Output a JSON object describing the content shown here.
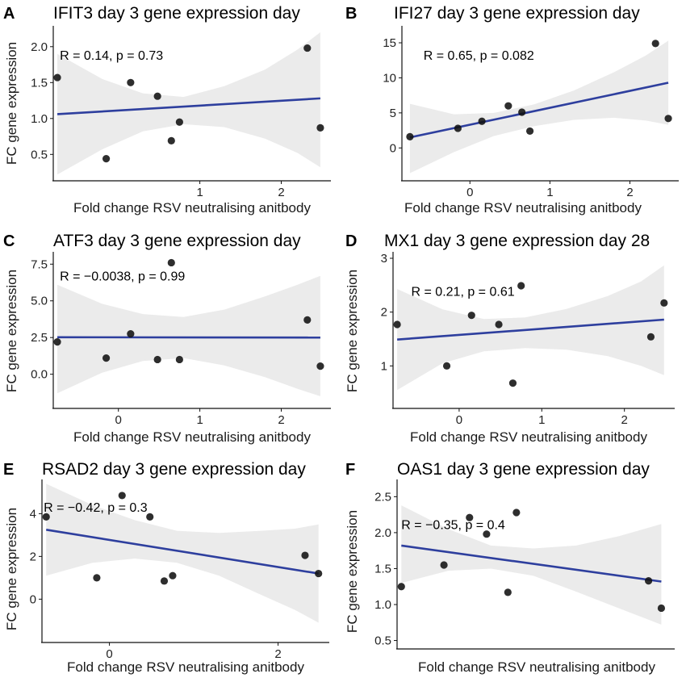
{
  "chart_data": [
    {
      "panel": "A",
      "type": "scatter",
      "title": "IFIT3 day 3 gene expression day",
      "xlabel": "Fold change RSV neutralising anitbody",
      "ylabel": "FC gene expression",
      "xlim": [
        -0.8,
        2.55
      ],
      "ylim": [
        0.2,
        2.2
      ],
      "xticks": [
        1,
        2
      ],
      "xtick_labels": [
        "1",
        "2"
      ],
      "yticks": [
        0.5,
        1.0,
        1.5,
        2.0
      ],
      "ytick_labels": [
        "0.5",
        "1.0",
        "1.5",
        "2.0"
      ],
      "x": [
        -0.75,
        -0.15,
        0.15,
        0.48,
        0.65,
        0.75,
        2.32,
        2.48
      ],
      "y": [
        1.57,
        0.44,
        1.5,
        1.31,
        0.69,
        0.95,
        1.98,
        0.87
      ],
      "fit": {
        "x": [
          -0.75,
          2.48
        ],
        "y": [
          1.06,
          1.28
        ]
      },
      "band": {
        "x": [
          -0.75,
          -0.2,
          0.3,
          0.8,
          1.3,
          1.8,
          2.2,
          2.48
        ],
        "lower": [
          0.22,
          0.57,
          0.82,
          0.92,
          0.88,
          0.72,
          0.52,
          0.32
        ],
        "upper": [
          1.9,
          1.55,
          1.35,
          1.3,
          1.45,
          1.68,
          1.96,
          2.2
        ]
      },
      "annotation": "R = 0.14, p = 0.73",
      "annotation_pos": [
        -0.72,
        1.82
      ]
    },
    {
      "panel": "B",
      "type": "scatter",
      "title": "IFI27 day 3 gene expression day",
      "xlabel": "Fold change RSV neutralising anitbody",
      "ylabel": "",
      "xlim": [
        -0.85,
        2.55
      ],
      "ylim": [
        -4,
        16.5
      ],
      "xticks": [
        0,
        1,
        2
      ],
      "xtick_labels": [
        "0",
        "1",
        "2"
      ],
      "yticks": [
        0,
        5,
        10,
        15
      ],
      "ytick_labels": [
        "0",
        "5",
        "10",
        "15"
      ],
      "x": [
        -0.75,
        -0.15,
        0.15,
        0.48,
        0.65,
        0.75,
        2.32,
        2.48
      ],
      "y": [
        1.6,
        2.8,
        3.8,
        6.0,
        5.1,
        2.4,
        14.9,
        4.2
      ],
      "fit": {
        "x": [
          -0.75,
          2.48
        ],
        "y": [
          1.5,
          9.3
        ]
      },
      "band": {
        "x": [
          -0.75,
          -0.2,
          0.3,
          0.8,
          1.3,
          1.8,
          2.2,
          2.48
        ],
        "lower": [
          -3.6,
          -0.6,
          1.7,
          3.1,
          4.0,
          4.3,
          3.9,
          3.3
        ],
        "upper": [
          6.3,
          4.8,
          5.0,
          6.2,
          8.2,
          10.8,
          13.2,
          15.3
        ]
      },
      "annotation": "R = 0.65, p = 0.082",
      "annotation_pos": [
        -0.58,
        12.6
      ]
    },
    {
      "panel": "C",
      "type": "scatter",
      "title": "ATF3 day 3 gene expression day",
      "xlabel": "Fold change RSV neutralising anitbody",
      "ylabel": "FC gene expression",
      "xlim": [
        -0.8,
        2.55
      ],
      "ylim": [
        -2.0,
        7.9
      ],
      "xticks": [
        0,
        1,
        2
      ],
      "xtick_labels": [
        "0",
        "1",
        "2"
      ],
      "yticks": [
        0.0,
        2.5,
        5.0,
        7.5
      ],
      "ytick_labels": [
        "0.0",
        "2.5",
        "5.0",
        "7.5"
      ],
      "x": [
        -0.75,
        -0.15,
        0.15,
        0.48,
        0.65,
        0.75,
        2.32,
        2.48
      ],
      "y": [
        2.2,
        1.1,
        2.75,
        1.0,
        7.6,
        1.0,
        3.7,
        0.55
      ],
      "fit": {
        "x": [
          -0.75,
          2.48
        ],
        "y": [
          2.52,
          2.5
        ]
      },
      "band": {
        "x": [
          -0.75,
          -0.2,
          0.3,
          0.8,
          1.3,
          1.8,
          2.2,
          2.48
        ],
        "lower": [
          -1.3,
          0.1,
          0.9,
          1.1,
          0.6,
          -0.2,
          -1.0,
          -1.5
        ],
        "upper": [
          6.1,
          4.8,
          4.1,
          3.9,
          4.4,
          5.3,
          6.1,
          6.7
        ]
      },
      "annotation": "R = −0.0038, p = 0.99",
      "annotation_pos": [
        -0.72,
        6.4
      ]
    },
    {
      "panel": "D",
      "type": "scatter",
      "title": "MX1 day 3 gene expression day 28",
      "xlabel": "Fold change RSV neutralising anitbody",
      "ylabel": "FC gene expression",
      "xlim": [
        -0.8,
        2.55
      ],
      "ylim": [
        0.3,
        3.0
      ],
      "xticks": [
        0,
        1,
        2
      ],
      "xtick_labels": [
        "0",
        "1",
        "2"
      ],
      "yticks": [
        1,
        2,
        3
      ],
      "ytick_labels": [
        "1",
        "2",
        "3"
      ],
      "x": [
        -0.75,
        -0.15,
        0.15,
        0.48,
        0.65,
        0.75,
        2.32,
        2.48
      ],
      "y": [
        1.77,
        1.0,
        1.94,
        1.77,
        0.68,
        2.49,
        1.54,
        2.17
      ],
      "fit": {
        "x": [
          -0.75,
          2.48
        ],
        "y": [
          1.49,
          1.86
        ]
      },
      "band": {
        "x": [
          -0.75,
          -0.2,
          0.3,
          0.8,
          1.3,
          1.8,
          2.2,
          2.48
        ],
        "lower": [
          0.55,
          1.05,
          1.27,
          1.33,
          1.3,
          1.18,
          1.0,
          0.83
        ],
        "upper": [
          2.43,
          2.05,
          1.87,
          1.9,
          2.06,
          2.3,
          2.57,
          2.87
        ]
      },
      "annotation": "R = 0.21, p = 0.61",
      "annotation_pos": [
        -0.58,
        2.3
      ]
    },
    {
      "panel": "E",
      "type": "scatter",
      "title": "RSAD2 day 3 gene expression day",
      "xlabel": "Fold change RSV neutralising anitbody",
      "ylabel": "FC gene expression",
      "xlim": [
        -0.8,
        2.55
      ],
      "ylim": [
        -1.8,
        5.3
      ],
      "xticks": [
        0,
        2
      ],
      "xtick_labels": [
        "0",
        "2"
      ],
      "yticks": [
        0,
        2,
        4
      ],
      "ytick_labels": [
        "0",
        "2",
        "4"
      ],
      "x": [
        -0.75,
        -0.15,
        0.15,
        0.48,
        0.65,
        0.75,
        2.32,
        2.48
      ],
      "y": [
        3.85,
        1.0,
        4.85,
        3.85,
        0.85,
        1.1,
        2.05,
        1.2
      ],
      "fit": {
        "x": [
          -0.75,
          2.48
        ],
        "y": [
          3.25,
          1.2
        ]
      },
      "band": {
        "x": [
          -0.75,
          -0.2,
          0.3,
          0.8,
          1.3,
          1.8,
          2.2,
          2.48
        ],
        "lower": [
          1.1,
          1.7,
          1.9,
          1.7,
          1.1,
          0.2,
          -0.5,
          -1.1
        ],
        "upper": [
          5.4,
          4.4,
          3.7,
          3.2,
          3.1,
          3.2,
          3.3,
          3.5
        ]
      },
      "annotation": "R = −0.42, p = 0.3",
      "annotation_pos": [
        -0.78,
        4.1
      ]
    },
    {
      "panel": "F",
      "type": "scatter",
      "title": "OAS1 day 3 gene expression day",
      "xlabel": "Fold change RSV neutralising anitbody",
      "ylabel": "FC gene expression",
      "xlim": [
        -0.6,
        2.6
      ],
      "ylim": [
        0.45,
        2.65
      ],
      "xticks": [],
      "xtick_labels": [],
      "yticks": [
        0.5,
        1.0,
        1.5,
        2.0,
        2.5
      ],
      "ytick_labels": [
        "0.5",
        "1.0",
        "1.5",
        "2.0",
        "2.5"
      ],
      "x": [
        -0.55,
        -0.05,
        0.25,
        0.45,
        0.7,
        0.8,
        2.35,
        2.5
      ],
      "y": [
        1.25,
        1.55,
        2.21,
        1.98,
        1.17,
        2.28,
        1.33,
        0.95
      ],
      "fit": {
        "x": [
          -0.55,
          2.5
        ],
        "y": [
          1.82,
          1.32
        ]
      },
      "band": {
        "x": [
          -0.55,
          0.0,
          0.5,
          1.0,
          1.5,
          2.0,
          2.5
        ],
        "lower": [
          1.3,
          1.47,
          1.5,
          1.4,
          1.18,
          0.95,
          0.72
        ],
        "upper": [
          2.38,
          2.05,
          1.82,
          1.78,
          1.82,
          1.95,
          2.12
        ]
      },
      "annotation": "R = −0.35, p = 0.4",
      "annotation_pos": [
        -0.55,
        2.05
      ]
    }
  ],
  "colors": {
    "fit_line": "#2e3f9e",
    "band": "#ebebeb",
    "point": "#111111"
  }
}
